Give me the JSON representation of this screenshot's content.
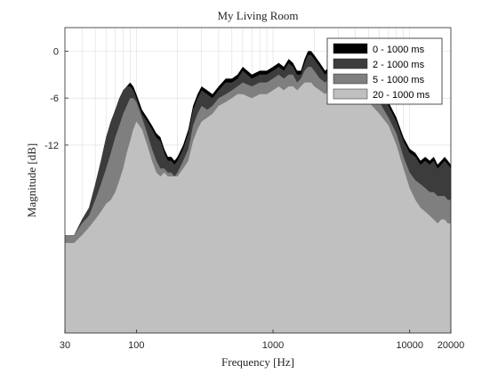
{
  "chart_data": {
    "type": "area",
    "title": "My Living Room",
    "xlabel": "Frequency [Hz]",
    "ylabel": "Magnitude [dB]",
    "x_scale": "log",
    "xlim": [
      30,
      20000
    ],
    "ylim": [
      -36,
      3
    ],
    "x_ticks": [
      {
        "value": 30,
        "label": "30"
      },
      {
        "value": 100,
        "label": "100"
      },
      {
        "value": 1000,
        "label": "1000"
      },
      {
        "value": 10000,
        "label": "10000"
      },
      {
        "value": 20000,
        "label": "20000"
      }
    ],
    "y_ticks": [
      {
        "value": 0,
        "label": "0"
      },
      {
        "value": -6,
        "label": "-6"
      },
      {
        "value": -12,
        "label": "-12"
      }
    ],
    "grid": true,
    "legend_position": "top-right",
    "x": [
      30,
      35,
      40,
      45,
      50,
      55,
      60,
      65,
      70,
      75,
      80,
      85,
      90,
      95,
      100,
      110,
      120,
      130,
      140,
      150,
      160,
      170,
      180,
      190,
      200,
      220,
      240,
      260,
      280,
      300,
      330,
      360,
      400,
      450,
      500,
      550,
      600,
      700,
      800,
      900,
      1000,
      1100,
      1200,
      1300,
      1400,
      1500,
      1600,
      1700,
      1800,
      1900,
      2000,
      2200,
      2400,
      2600,
      2800,
      3000,
      3500,
      4000,
      4500,
      5000,
      6000,
      7000,
      8000,
      9000,
      10000,
      11000,
      12000,
      13000,
      14000,
      15000,
      16000,
      17000,
      18000,
      19000,
      20000
    ],
    "series": [
      {
        "name": "0 - 1000 ms",
        "color": "#000000",
        "values": [
          -23.5,
          -23.5,
          -21.5,
          -20,
          -17,
          -14,
          -11,
          -9,
          -7.5,
          -6,
          -5,
          -4.5,
          -4,
          -4.5,
          -5.5,
          -7.5,
          -8.5,
          -9.5,
          -10.5,
          -11,
          -12.5,
          -13.5,
          -13.5,
          -14,
          -13.5,
          -12,
          -10,
          -7,
          -5.5,
          -4.5,
          -5,
          -5.5,
          -4.5,
          -3.5,
          -3.5,
          -3,
          -2,
          -3,
          -2.5,
          -2.5,
          -2,
          -1.5,
          -2,
          -1,
          -1.5,
          -2.5,
          -2.5,
          -1,
          0,
          0,
          -0.5,
          -1.5,
          -2.5,
          -2,
          -3,
          -3.5,
          -2.5,
          -3,
          -3,
          -3.5,
          -5,
          -6.5,
          -8.5,
          -11,
          -12.5,
          -13,
          -14,
          -13.5,
          -14,
          -13.5,
          -14.5,
          -14,
          -13.5,
          -14,
          -14.5
        ]
      },
      {
        "name": "2 - 1000 ms",
        "color": "#3c3c3c",
        "values": [
          -23.5,
          -23.5,
          -21.5,
          -20,
          -17,
          -14,
          -11,
          -9,
          -7.5,
          -6,
          -5,
          -4.5,
          -4.5,
          -5,
          -6,
          -8,
          -9,
          -10,
          -11,
          -11.5,
          -13,
          -14,
          -14,
          -14.5,
          -14,
          -12.5,
          -10.5,
          -7.5,
          -6,
          -5,
          -5.5,
          -6,
          -5,
          -4,
          -4,
          -3.5,
          -2.5,
          -3.5,
          -3,
          -3,
          -2.5,
          -2,
          -2.5,
          -1.5,
          -2,
          -3,
          -3,
          -1.5,
          -0.5,
          -0.5,
          -1,
          -2,
          -3,
          -2.5,
          -3.5,
          -4,
          -3,
          -3.5,
          -3.5,
          -4,
          -5.5,
          -7,
          -9,
          -11.5,
          -13,
          -13.5,
          -14.5,
          -14,
          -14.5,
          -14,
          -15,
          -14.5,
          -14,
          -14.5,
          -15
        ]
      },
      {
        "name": "5 - 1000 ms",
        "color": "#7f7f7f",
        "values": [
          -23.5,
          -23.5,
          -22,
          -21,
          -19,
          -17,
          -15,
          -13,
          -11,
          -9.5,
          -8,
          -7,
          -6,
          -6,
          -6.5,
          -8.5,
          -10.5,
          -12.5,
          -14,
          -15,
          -15,
          -15.5,
          -15.5,
          -16,
          -15.5,
          -14,
          -12.5,
          -9.5,
          -8,
          -7,
          -7.5,
          -7,
          -6,
          -5.5,
          -5,
          -4.5,
          -4,
          -4.5,
          -4,
          -4,
          -3.5,
          -3,
          -3.5,
          -3,
          -3,
          -4,
          -3.5,
          -2.5,
          -2,
          -2,
          -2.5,
          -3.5,
          -4,
          -3.5,
          -4.5,
          -5,
          -4.5,
          -4.5,
          -4.5,
          -5,
          -6.5,
          -8.5,
          -10.5,
          -13.5,
          -15.5,
          -16.5,
          -17,
          -17.5,
          -18,
          -18,
          -18.5,
          -18.5,
          -18.5,
          -19,
          -19
        ]
      },
      {
        "name": "20 - 1000 ms",
        "color": "#c0c0c0",
        "values": [
          -24.5,
          -24.5,
          -23.5,
          -22.5,
          -21.5,
          -20.5,
          -19.5,
          -19,
          -18,
          -16.5,
          -15,
          -13,
          -11.5,
          -10,
          -9,
          -10,
          -12,
          -14,
          -15.5,
          -16,
          -15.5,
          -16,
          -16,
          -16,
          -16,
          -15,
          -14,
          -11.5,
          -10,
          -9,
          -8.5,
          -8,
          -7,
          -6.5,
          -6,
          -5.5,
          -5.5,
          -6,
          -5.5,
          -5.5,
          -5,
          -4.5,
          -5,
          -4.5,
          -4.5,
          -5,
          -4.5,
          -4,
          -4,
          -4,
          -4.5,
          -5,
          -5.5,
          -5,
          -5.5,
          -6,
          -6,
          -6,
          -6,
          -6.5,
          -8,
          -9.5,
          -12,
          -15,
          -17.5,
          -19,
          -20,
          -20.5,
          -21,
          -21.5,
          -22,
          -21.5,
          -21.5,
          -22,
          -22
        ]
      }
    ]
  }
}
